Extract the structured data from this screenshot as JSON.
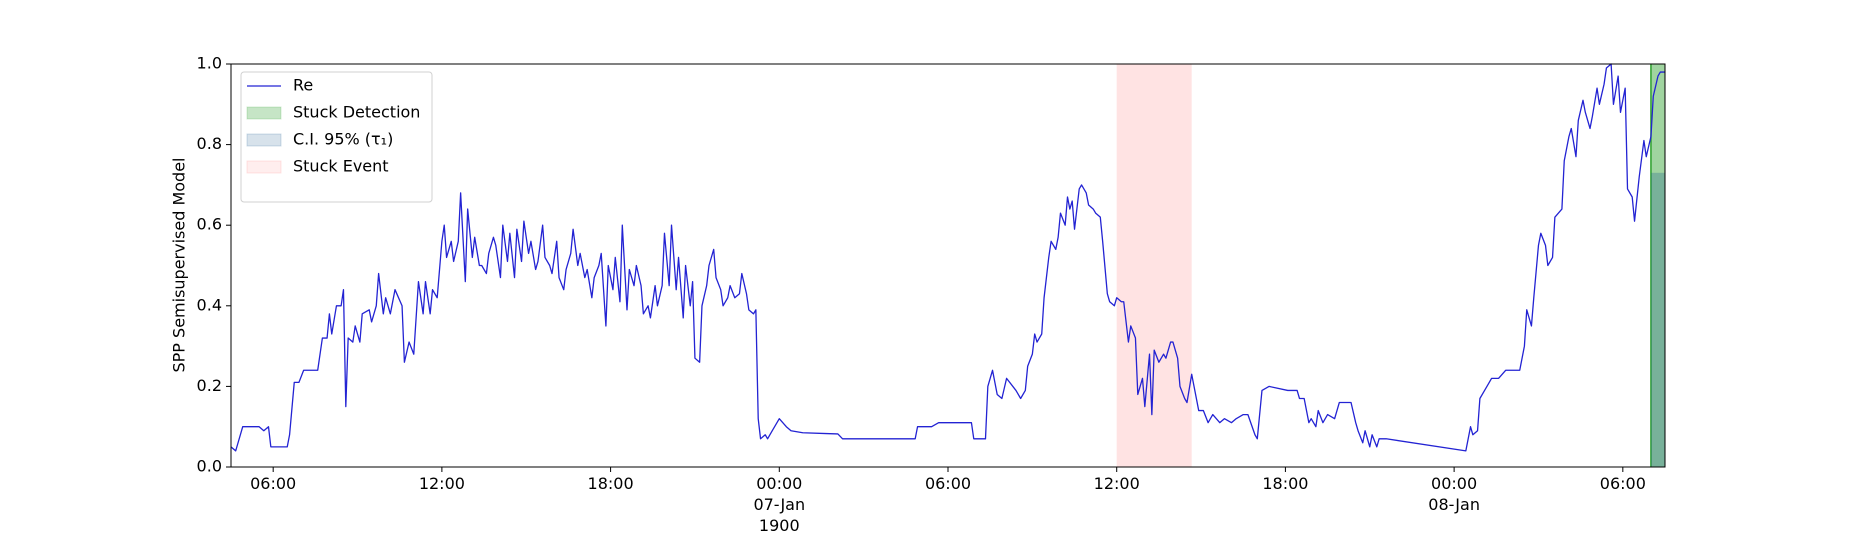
{
  "chart_data": {
    "type": "line",
    "ylabel": "SPP Semisupervised Model",
    "ylim": [
      0,
      1
    ],
    "yticks": [
      {
        "value": 0,
        "label": "0.0"
      },
      0.2,
      0.4,
      0.6,
      0.8,
      {
        "value": 1,
        "label": "1.0"
      }
    ],
    "xlim": [
      "1900-01-06 04:30",
      "1900-01-08 07:30"
    ],
    "xticks": [
      {
        "value": "1900-01-06 06:00",
        "label": "06:00"
      },
      {
        "value": "1900-01-06 12:00",
        "label": "12:00"
      },
      {
        "value": "1900-01-06 18:00",
        "label": "18:00"
      },
      {
        "value": "1900-01-07 00:00",
        "label": "00:00\n07-Jan\n1900"
      },
      {
        "value": "1900-01-07 06:00",
        "label": "06:00"
      },
      {
        "value": "1900-01-07 12:00",
        "label": "12:00"
      },
      {
        "value": "1900-01-07 18:00",
        "label": "18:00"
      },
      {
        "value": "1900-01-08 00:00",
        "label": "00:00\n08-Jan"
      },
      {
        "value": "1900-01-08 06:00",
        "label": "06:00"
      }
    ],
    "legend": "upper left",
    "x": [
      "1900-01-06 04:30",
      "1900-01-06 04:40",
      "1900-01-06 04:55",
      "1900-01-06 05:30",
      "1900-01-06 05:40",
      "1900-01-06 05:50",
      "1900-01-06 05:55",
      "1900-01-06 06:20",
      "1900-01-06 06:30",
      "1900-01-06 06:35",
      "1900-01-06 06:45",
      "1900-01-06 06:55",
      "1900-01-06 07:05",
      "1900-01-06 07:20",
      "1900-01-06 07:35",
      "1900-01-06 07:45",
      "1900-01-06 07:55",
      "1900-01-06 08:00",
      "1900-01-06 08:05",
      "1900-01-06 08:15",
      "1900-01-06 08:25",
      "1900-01-06 08:30",
      "1900-01-06 08:35",
      "1900-01-06 08:40",
      "1900-01-06 08:50",
      "1900-01-06 08:55",
      "1900-01-06 09:05",
      "1900-01-06 09:10",
      "1900-01-06 09:25",
      "1900-01-06 09:30",
      "1900-01-06 09:40",
      "1900-01-06 09:45",
      "1900-01-06 09:55",
      "1900-01-06 10:00",
      "1900-01-06 10:10",
      "1900-01-06 10:20",
      "1900-01-06 10:35",
      "1900-01-06 10:40",
      "1900-01-06 10:50",
      "1900-01-06 11:00",
      "1900-01-06 11:10",
      "1900-01-06 11:20",
      "1900-01-06 11:25",
      "1900-01-06 11:35",
      "1900-01-06 11:40",
      "1900-01-06 11:50",
      "1900-01-06 12:00",
      "1900-01-06 12:05",
      "1900-01-06 12:10",
      "1900-01-06 12:20",
      "1900-01-06 12:25",
      "1900-01-06 12:35",
      "1900-01-06 12:40",
      "1900-01-06 12:50",
      "1900-01-06 12:55",
      "1900-01-06 13:05",
      "1900-01-06 13:10",
      "1900-01-06 13:20",
      "1900-01-06 13:25",
      "1900-01-06 13:35",
      "1900-01-06 13:40",
      "1900-01-06 13:50",
      "1900-01-06 13:55",
      "1900-01-06 14:05",
      "1900-01-06 14:10",
      "1900-01-06 14:20",
      "1900-01-06 14:25",
      "1900-01-06 14:35",
      "1900-01-06 14:40",
      "1900-01-06 14:50",
      "1900-01-06 14:55",
      "1900-01-06 15:05",
      "1900-01-06 15:10",
      "1900-01-06 15:20",
      "1900-01-06 15:25",
      "1900-01-06 15:35",
      "1900-01-06 15:40",
      "1900-01-06 15:50",
      "1900-01-06 15:55",
      "1900-01-06 16:05",
      "1900-01-06 16:10",
      "1900-01-06 16:20",
      "1900-01-06 16:25",
      "1900-01-06 16:35",
      "1900-01-06 16:40",
      "1900-01-06 16:50",
      "1900-01-06 16:55",
      "1900-01-06 17:05",
      "1900-01-06 17:10",
      "1900-01-06 17:20",
      "1900-01-06 17:25",
      "1900-01-06 17:35",
      "1900-01-06 17:40",
      "1900-01-06 17:50",
      "1900-01-06 17:55",
      "1900-01-06 18:05",
      "1900-01-06 18:10",
      "1900-01-06 18:20",
      "1900-01-06 18:25",
      "1900-01-06 18:35",
      "1900-01-06 18:40",
      "1900-01-06 18:50",
      "1900-01-06 18:55",
      "1900-01-06 19:05",
      "1900-01-06 19:10",
      "1900-01-06 19:20",
      "1900-01-06 19:25",
      "1900-01-06 19:35",
      "1900-01-06 19:40",
      "1900-01-06 19:50",
      "1900-01-06 19:55",
      "1900-01-06 20:05",
      "1900-01-06 20:10",
      "1900-01-06 20:20",
      "1900-01-06 20:25",
      "1900-01-06 20:35",
      "1900-01-06 20:40",
      "1900-01-06 20:50",
      "1900-01-06 20:55",
      "1900-01-06 21:00",
      "1900-01-06 21:10",
      "1900-01-06 21:15",
      "1900-01-06 21:25",
      "1900-01-06 21:30",
      "1900-01-06 21:40",
      "1900-01-06 21:45",
      "1900-01-06 21:55",
      "1900-01-06 22:00",
      "1900-01-06 22:10",
      "1900-01-06 22:15",
      "1900-01-06 22:25",
      "1900-01-06 22:35",
      "1900-01-06 22:40",
      "1900-01-06 22:50",
      "1900-01-06 22:55",
      "1900-01-06 23:05",
      "1900-01-06 23:10",
      "1900-01-06 23:15",
      "1900-01-06 23:20",
      "1900-01-06 23:30",
      "1900-01-06 23:35",
      "1900-01-06 23:45",
      "1900-01-06 23:50",
      "1900-01-07 00:00",
      "1900-01-07 00:15",
      "1900-01-07 00:25",
      "1900-01-07 00:50",
      "1900-01-07 01:40",
      "1900-01-07 02:05",
      "1900-01-07 02:15",
      "1900-01-07 03:20",
      "1900-01-07 04:50",
      "1900-01-07 04:55",
      "1900-01-07 05:25",
      "1900-01-07 05:40",
      "1900-01-07 06:50",
      "1900-01-07 06:55",
      "1900-01-07 07:20",
      "1900-01-07 07:25",
      "1900-01-07 07:35",
      "1900-01-07 07:45",
      "1900-01-07 07:55",
      "1900-01-07 08:05",
      "1900-01-07 08:25",
      "1900-01-07 08:35",
      "1900-01-07 08:45",
      "1900-01-07 08:50",
      "1900-01-07 09:00",
      "1900-01-07 09:05",
      "1900-01-07 09:10",
      "1900-01-07 09:20",
      "1900-01-07 09:25",
      "1900-01-07 09:35",
      "1900-01-07 09:40",
      "1900-01-07 09:50",
      "1900-01-07 09:55",
      "1900-01-07 10:00",
      "1900-01-07 10:10",
      "1900-01-07 10:15",
      "1900-01-07 10:20",
      "1900-01-07 10:25",
      "1900-01-07 10:30",
      "1900-01-07 10:40",
      "1900-01-07 10:45",
      "1900-01-07 10:55",
      "1900-01-07 11:00",
      "1900-01-07 11:10",
      "1900-01-07 11:15",
      "1900-01-07 11:25",
      "1900-01-07 11:30",
      "1900-01-07 11:40",
      "1900-01-07 11:45",
      "1900-01-07 11:55",
      "1900-01-07 12:00",
      "1900-01-07 12:10",
      "1900-01-07 12:15",
      "1900-01-07 12:25",
      "1900-01-07 12:30",
      "1900-01-07 12:40",
      "1900-01-07 12:45",
      "1900-01-07 12:55",
      "1900-01-07 13:00",
      "1900-01-07 13:10",
      "1900-01-07 13:15",
      "1900-01-07 13:20",
      "1900-01-07 13:30",
      "1900-01-07 13:40",
      "1900-01-07 13:45",
      "1900-01-07 13:55",
      "1900-01-07 14:00",
      "1900-01-07 14:10",
      "1900-01-07 14:15",
      "1900-01-07 14:25",
      "1900-01-07 14:30",
      "1900-01-07 14:40",
      "1900-01-07 14:45",
      "1900-01-07 14:55",
      "1900-01-07 15:05",
      "1900-01-07 15:15",
      "1900-01-07 15:25",
      "1900-01-07 15:40",
      "1900-01-07 15:50",
      "1900-01-07 16:05",
      "1900-01-07 16:15",
      "1900-01-07 16:30",
      "1900-01-07 16:40",
      "1900-01-07 16:55",
      "1900-01-07 17:00",
      "1900-01-07 17:10",
      "1900-01-07 17:25",
      "1900-01-07 18:05",
      "1900-01-07 18:25",
      "1900-01-07 18:30",
      "1900-01-07 18:40",
      "1900-01-07 18:50",
      "1900-01-07 18:55",
      "1900-01-07 19:05",
      "1900-01-07 19:10",
      "1900-01-07 19:20",
      "1900-01-07 19:30",
      "1900-01-07 19:45",
      "1900-01-07 19:55",
      "1900-01-07 20:20",
      "1900-01-07 20:30",
      "1900-01-07 20:35",
      "1900-01-07 20:45",
      "1900-01-07 20:50",
      "1900-01-07 21:00",
      "1900-01-07 21:05",
      "1900-01-07 21:15",
      "1900-01-07 21:20",
      "1900-01-07 21:35",
      "1900-01-08 00:25",
      "1900-01-08 00:35",
      "1900-01-08 00:40",
      "1900-01-08 00:50",
      "1900-01-08 00:55",
      "1900-01-08 01:05",
      "1900-01-08 01:10",
      "1900-01-08 01:20",
      "1900-01-08 01:35",
      "1900-01-08 01:50",
      "1900-01-08 02:05",
      "1900-01-08 02:20",
      "1900-01-08 02:30",
      "1900-01-08 02:35",
      "1900-01-08 02:45",
      "1900-01-08 02:50",
      "1900-01-08 03:00",
      "1900-01-08 03:05",
      "1900-01-08 03:15",
      "1900-01-08 03:20",
      "1900-01-08 03:30",
      "1900-01-08 03:35",
      "1900-01-08 03:50",
      "1900-01-08 03:55",
      "1900-01-08 04:05",
      "1900-01-08 04:10",
      "1900-01-08 04:20",
      "1900-01-08 04:25",
      "1900-01-08 04:35",
      "1900-01-08 04:40",
      "1900-01-08 04:50",
      "1900-01-08 04:55",
      "1900-01-08 05:05",
      "1900-01-08 05:10",
      "1900-01-08 05:20",
      "1900-01-08 05:25",
      "1900-01-08 05:35",
      "1900-01-08 05:40",
      "1900-01-08 05:50",
      "1900-01-08 05:55",
      "1900-01-08 06:05",
      "1900-01-08 06:10",
      "1900-01-08 06:20",
      "1900-01-08 06:25",
      "1900-01-08 06:35",
      "1900-01-08 06:45",
      "1900-01-08 06:50",
      "1900-01-08 07:00",
      "1900-01-08 07:05",
      "1900-01-08 07:15",
      "1900-01-08 07:20",
      "1900-01-08 07:30"
    ],
    "series": [
      {
        "name": "Re",
        "color": "#2323d3",
        "values": [
          0.05,
          0.04,
          0.1,
          0.1,
          0.09,
          0.1,
          0.05,
          0.05,
          0.05,
          0.08,
          0.21,
          0.21,
          0.24,
          0.24,
          0.24,
          0.32,
          0.32,
          0.38,
          0.33,
          0.4,
          0.4,
          0.44,
          0.15,
          0.32,
          0.31,
          0.35,
          0.31,
          0.38,
          0.39,
          0.36,
          0.4,
          0.48,
          0.38,
          0.42,
          0.38,
          0.44,
          0.4,
          0.26,
          0.31,
          0.28,
          0.46,
          0.38,
          0.46,
          0.38,
          0.44,
          0.42,
          0.56,
          0.6,
          0.52,
          0.56,
          0.51,
          0.56,
          0.68,
          0.46,
          0.64,
          0.52,
          0.57,
          0.5,
          0.5,
          0.48,
          0.53,
          0.57,
          0.55,
          0.47,
          0.6,
          0.51,
          0.58,
          0.47,
          0.59,
          0.51,
          0.61,
          0.53,
          0.56,
          0.49,
          0.51,
          0.6,
          0.52,
          0.5,
          0.48,
          0.56,
          0.47,
          0.44,
          0.49,
          0.53,
          0.59,
          0.5,
          0.53,
          0.47,
          0.49,
          0.42,
          0.47,
          0.5,
          0.53,
          0.35,
          0.5,
          0.44,
          0.52,
          0.41,
          0.6,
          0.39,
          0.49,
          0.45,
          0.5,
          0.45,
          0.38,
          0.4,
          0.37,
          0.45,
          0.4,
          0.45,
          0.58,
          0.45,
          0.6,
          0.44,
          0.52,
          0.37,
          0.5,
          0.4,
          0.46,
          0.27,
          0.26,
          0.4,
          0.45,
          0.5,
          0.54,
          0.47,
          0.44,
          0.4,
          0.42,
          0.45,
          0.42,
          0.43,
          0.48,
          0.43,
          0.39,
          0.38,
          0.39,
          0.12,
          0.07,
          0.08,
          0.07,
          0.09,
          0.1,
          0.12,
          0.1,
          0.09,
          0.085,
          0.083,
          0.082,
          0.07,
          0.07,
          0.07,
          0.1,
          0.1,
          0.11,
          0.11,
          0.07,
          0.07,
          0.2,
          0.24,
          0.18,
          0.17,
          0.22,
          0.19,
          0.17,
          0.19,
          0.25,
          0.28,
          0.33,
          0.31,
          0.33,
          0.42,
          0.52,
          0.56,
          0.54,
          0.57,
          0.63,
          0.6,
          0.67,
          0.64,
          0.66,
          0.59,
          0.69,
          0.7,
          0.68,
          0.65,
          0.64,
          0.63,
          0.62,
          0.56,
          0.43,
          0.41,
          0.4,
          0.42,
          0.41,
          0.41,
          0.31,
          0.35,
          0.32,
          0.18,
          0.22,
          0.15,
          0.28,
          0.13,
          0.29,
          0.26,
          0.28,
          0.27,
          0.31,
          0.31,
          0.27,
          0.2,
          0.17,
          0.16,
          0.23,
          0.2,
          0.14,
          0.14,
          0.11,
          0.13,
          0.11,
          0.12,
          0.11,
          0.12,
          0.13,
          0.13,
          0.08,
          0.07,
          0.19,
          0.2,
          0.19,
          0.19,
          0.17,
          0.17,
          0.11,
          0.12,
          0.1,
          0.14,
          0.11,
          0.13,
          0.12,
          0.16,
          0.16,
          0.11,
          0.09,
          0.06,
          0.09,
          0.05,
          0.08,
          0.05,
          0.07,
          0.07,
          0.04,
          0.1,
          0.08,
          0.09,
          0.17,
          0.19,
          0.2,
          0.22,
          0.22,
          0.24,
          0.24,
          0.24,
          0.3,
          0.39,
          0.35,
          0.42,
          0.55,
          0.58,
          0.55,
          0.5,
          0.52,
          0.62,
          0.64,
          0.76,
          0.82,
          0.84,
          0.77,
          0.86,
          0.91,
          0.88,
          0.84,
          0.87,
          0.94,
          0.9,
          0.95,
          0.99,
          1.0,
          0.9,
          0.97,
          0.88,
          0.94,
          0.69,
          0.67,
          0.61,
          0.72,
          0.81,
          0.77,
          0.82,
          0.92,
          0.97,
          0.98,
          0.98
        ]
      }
    ],
    "spans": [
      {
        "name": "Stuck Detection",
        "color": "#2ca02c",
        "alpha": 0.45,
        "x": [
          "1900-01-08 07:00",
          "1900-01-08 07:30"
        ],
        "edge": "#2ca02c"
      },
      {
        "name": "C.I. 95% (τ₁)",
        "color": "#1f5f8f",
        "alpha": 0.3,
        "x": [
          "1900-01-08 07:00",
          "1900-01-08 07:30"
        ],
        "y": [
          0,
          0.73
        ]
      },
      {
        "name": "Stuck Event",
        "color": "#ff8080",
        "alpha": 0.22,
        "x": [
          "1900-01-07 12:00",
          "1900-01-07 14:40"
        ]
      }
    ]
  }
}
